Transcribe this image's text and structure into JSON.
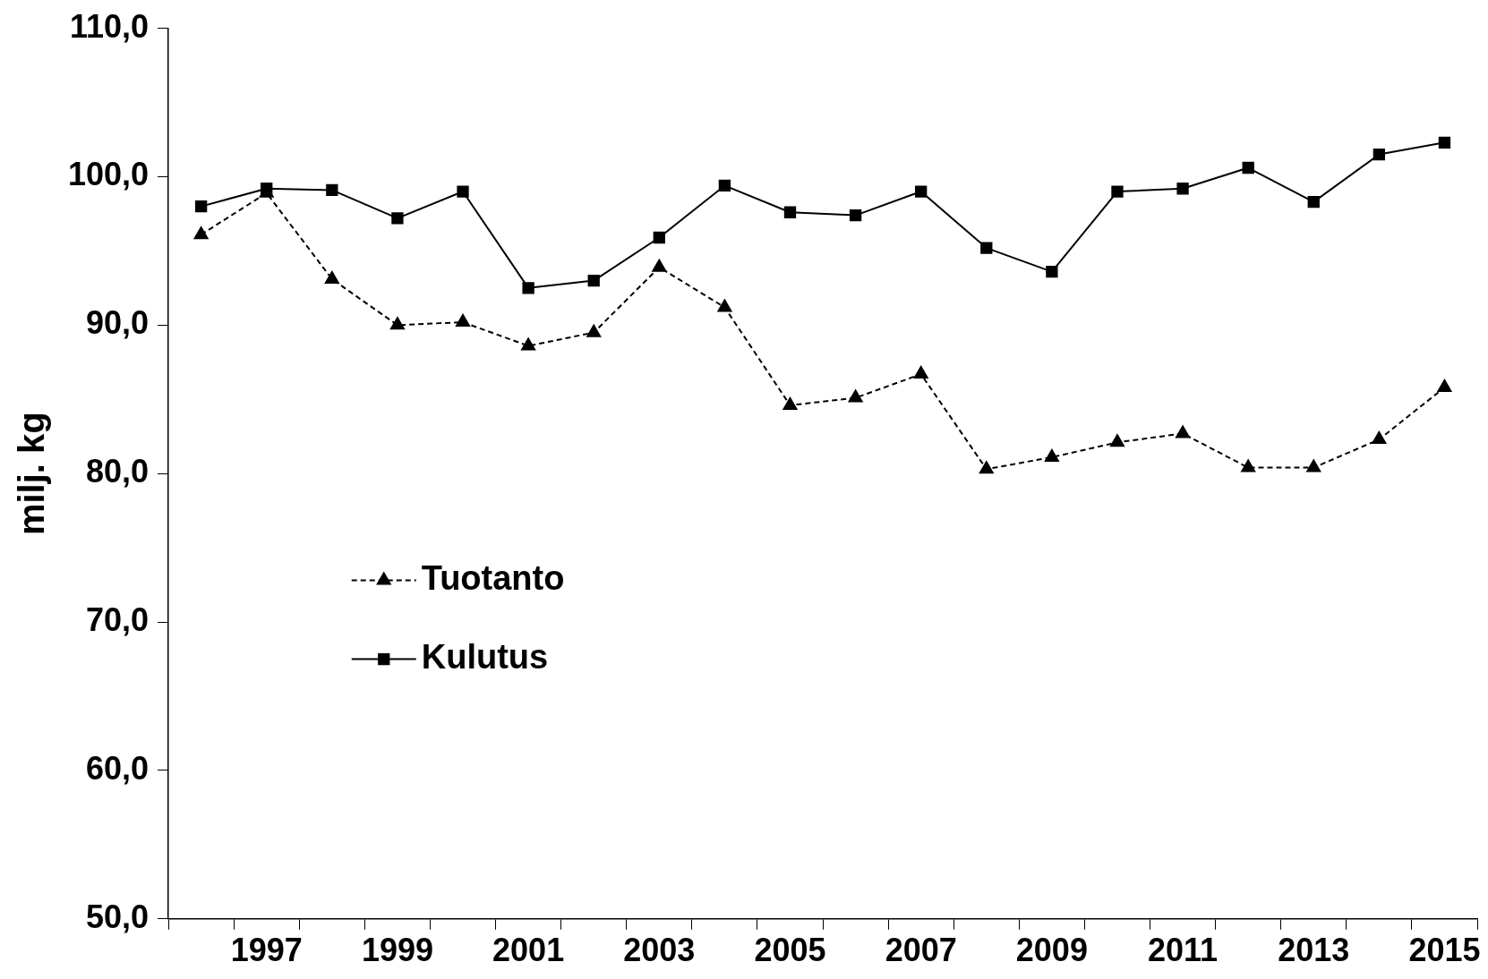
{
  "chart_data": {
    "type": "line",
    "ylabel": "milj. kg",
    "categories": [
      null,
      "1997",
      null,
      "1999",
      null,
      "2001",
      null,
      "2003",
      null,
      "2005",
      null,
      "2007",
      null,
      "2009",
      null,
      "2011",
      null,
      "2013",
      null,
      "2015"
    ],
    "series": [
      {
        "name": "Tuotanto",
        "color": "#000000",
        "marker": "triangle",
        "line_style": "dashed",
        "values": [
          96.1,
          98.9,
          93.1,
          90.0,
          90.2,
          88.6,
          89.5,
          93.9,
          91.2,
          84.6,
          85.1,
          86.7,
          80.3,
          81.1,
          82.1,
          82.7,
          80.4,
          80.4,
          82.3,
          85.8
        ]
      },
      {
        "name": "Kulutus",
        "color": "#000000",
        "marker": "square",
        "line_style": "solid",
        "values": [
          98.0,
          99.2,
          99.1,
          97.2,
          99.0,
          92.5,
          93.0,
          95.9,
          99.4,
          97.6,
          97.4,
          99.0,
          95.2,
          93.6,
          99.0,
          99.2,
          100.6,
          98.3,
          101.5,
          102.3
        ]
      }
    ],
    "ylim": [
      50,
      110
    ],
    "yticks": [
      {
        "value": 50,
        "label": "50,0"
      },
      {
        "value": 60,
        "label": "60,0"
      },
      {
        "value": 70,
        "label": "70,0"
      },
      {
        "value": 80,
        "label": "80,0"
      },
      {
        "value": 90,
        "label": "90,0"
      },
      {
        "value": 100,
        "label": "100,0"
      },
      {
        "value": 110,
        "label": "110,0"
      }
    ],
    "grid": false,
    "legend": "left"
  }
}
